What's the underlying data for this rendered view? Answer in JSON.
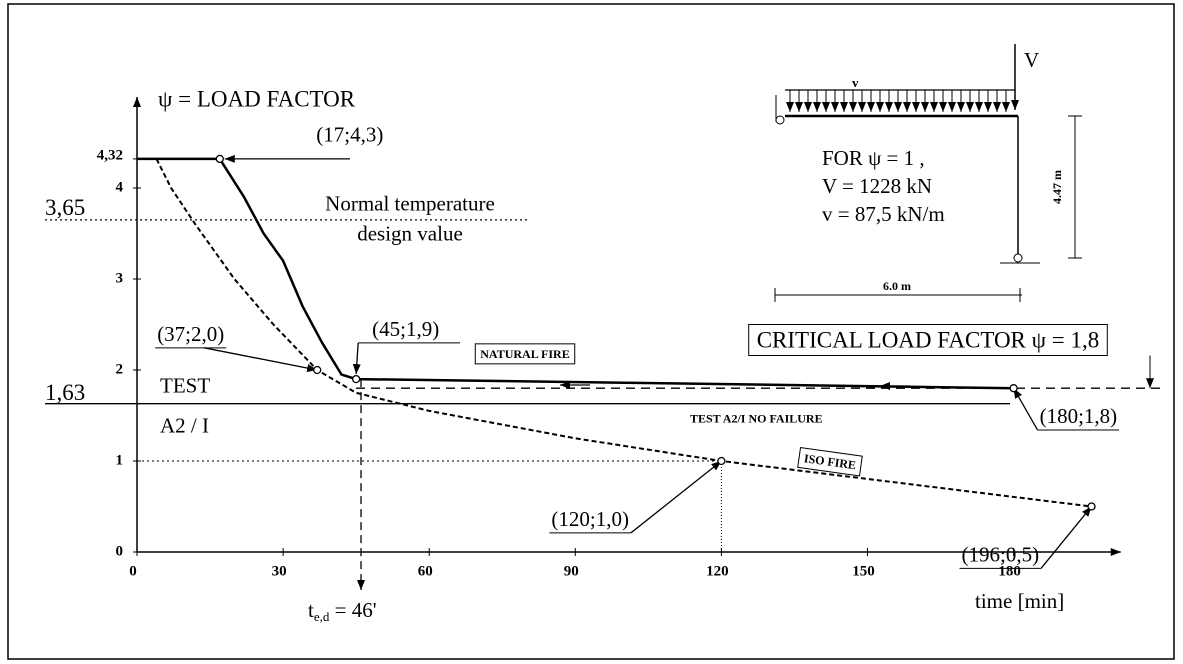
{
  "chart_data": {
    "type": "line",
    "title": "ψ = LOAD FACTOR",
    "x_label": "time [min]",
    "xlim": [
      0,
      202
    ],
    "ylim": [
      0,
      5
    ],
    "xticks": [
      0,
      30,
      60,
      90,
      120,
      150,
      180
    ],
    "yticks": [
      0,
      1,
      2,
      3,
      4,
      {
        "value": 4.32,
        "label": "4,32"
      }
    ],
    "series": [
      {
        "name": "NATURAL FIRE",
        "color": "#000000",
        "dashed": false,
        "x": [
          0,
          17,
          22,
          26,
          30,
          34,
          38,
          42,
          45,
          100,
          180
        ],
        "values": [
          4.32,
          4.32,
          3.9,
          3.5,
          3.2,
          2.7,
          2.3,
          1.95,
          1.9,
          1.86,
          1.8
        ]
      },
      {
        "name": "ISO FIRE",
        "color": "#000000",
        "dashed": true,
        "x": [
          4,
          7,
          12,
          20,
          28,
          37,
          45,
          60,
          90,
          120,
          196
        ],
        "values": [
          4.32,
          4.0,
          3.6,
          3.0,
          2.5,
          2.0,
          1.75,
          1.55,
          1.25,
          1.0,
          0.5
        ]
      }
    ],
    "reference_lines": [
      {
        "value": 3.65,
        "label": "3,65",
        "style": "dotted",
        "note": [
          "Normal temperature",
          "design value"
        ]
      },
      {
        "value": 1.63,
        "label": "1,63",
        "style": "solid",
        "note": [
          "TEST",
          "A2 / I"
        ],
        "caption": "TEST A2/I NO FAILURE"
      },
      {
        "value": 1.8,
        "style": "dashed",
        "note": [
          "CRITICAL LOAD FACTOR ψ = 1,8"
        ]
      }
    ],
    "callouts": [
      {
        "label": "(17;4,3)",
        "x": 17,
        "y": 4.32
      },
      {
        "label": "(37;2,0)",
        "x": 37,
        "y": 2.0
      },
      {
        "label": "(45;1,9)",
        "x": 45,
        "y": 1.9
      },
      {
        "label": "(120;1,0)",
        "x": 120,
        "y": 1.0
      },
      {
        "label": "(180;1,8)",
        "x": 180,
        "y": 1.8
      },
      {
        "label": "(196;0,5)",
        "x": 196,
        "y": 0.5
      }
    ],
    "design_time": {
      "value": 46,
      "symbol": "t",
      "subscript": "e,d",
      "label": " = 46'"
    },
    "inset": {
      "load_case": "FOR ψ = 1 ,",
      "point_load": "V = 1228 kN",
      "line_load": "v = 87,5 kN/m",
      "height": "4.47 m",
      "span": "6.0 m",
      "point_symbol": "V",
      "line_symbol": "v"
    }
  }
}
